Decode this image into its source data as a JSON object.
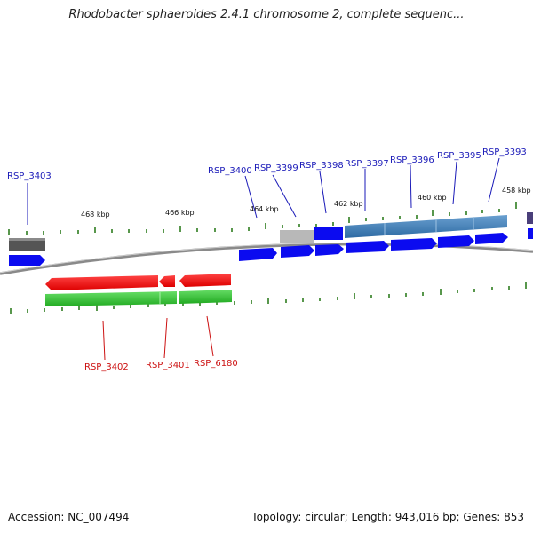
{
  "title": "Rhodobacter sphaeroides 2.4.1 chromosome 2, complete sequenc...",
  "footer": {
    "accession": "Accession: NC_007494",
    "summary": "Topology: circular; Length: 943,016 bp; Genes: 853"
  },
  "colors": {
    "backbone": "#8a8a8a",
    "tick": "#2e7d1f",
    "forward_label": "#1a1ab8",
    "reverse_label": "#cc1111",
    "cds_forward": "#0b0bf0",
    "cds_reverse": "#ee1111",
    "gene_forward": "#3f7fb7",
    "gene_reverse": "#33c433",
    "gene_unknown": "#b8b8b8",
    "gene_dark": "#555555",
    "gene_purple": "#4a3f7a"
  },
  "tick_labels": [
    "468 kbp",
    "466 kbp",
    "464 kbp",
    "462 kbp",
    "460 kbp",
    "458 kbp"
  ],
  "forward_labels": [
    "RSP_3403",
    "RSP_3400",
    "RSP_3399",
    "RSP_3398",
    "RSP_3397",
    "RSP_3396",
    "RSP_3395",
    "RSP_3393"
  ],
  "reverse_labels": [
    "RSP_3402",
    "RSP_3401",
    "RSP_6180"
  ]
}
